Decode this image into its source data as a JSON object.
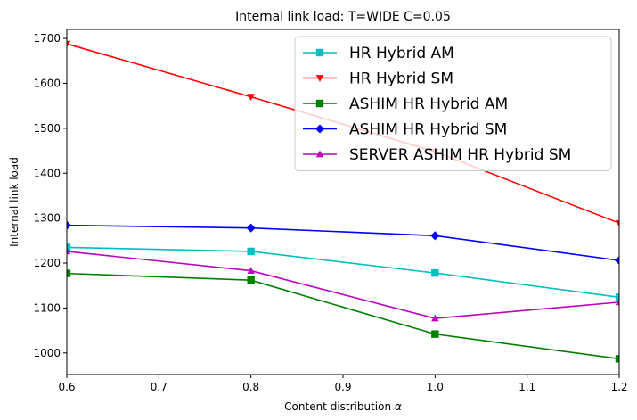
{
  "chart_data": {
    "type": "line",
    "title": "Internal link load: T=WIDE C=0.05",
    "xlabel": "Content distribution",
    "xlabel_symbol": "α",
    "ylabel": "Internal link load",
    "xlim": [
      0.6,
      1.2
    ],
    "ylim": [
      952,
      1720
    ],
    "xticks": [
      0.6,
      0.7,
      0.8,
      0.9,
      1.0,
      1.1,
      1.2
    ],
    "xtick_labels": [
      "0.6",
      "0.7",
      "0.8",
      "0.9",
      "1.0",
      "1.1",
      "1.2"
    ],
    "yticks": [
      1000,
      1100,
      1200,
      1300,
      1400,
      1500,
      1600,
      1700
    ],
    "ytick_labels": [
      "1000",
      "1100",
      "1200",
      "1300",
      "1400",
      "1500",
      "1600",
      "1700"
    ],
    "grid": false,
    "legend_position": "top-right",
    "x": [
      0.6,
      0.8,
      1.0,
      1.2
    ],
    "series": [
      {
        "name": "HR Hybrid AM",
        "color": "#00bfbf",
        "marker": "square",
        "values": [
          1235,
          1226,
          1178,
          1124
        ]
      },
      {
        "name": "HR Hybrid SM",
        "color": "#ff0000",
        "marker": "triangle-down",
        "values": [
          1688,
          1570,
          1448,
          1289
        ]
      },
      {
        "name": "ASHIM HR Hybrid AM",
        "color": "#008000",
        "marker": "square",
        "values": [
          1177,
          1162,
          1042,
          987
        ]
      },
      {
        "name": "ASHIM HR Hybrid SM",
        "color": "#0000ff",
        "marker": "diamond",
        "values": [
          1284,
          1278,
          1261,
          1206
        ]
      },
      {
        "name": "SERVER ASHIM HR Hybrid SM",
        "color": "#bf00bf",
        "marker": "triangle-up",
        "values": [
          1226,
          1183,
          1077,
          1113
        ]
      }
    ]
  }
}
